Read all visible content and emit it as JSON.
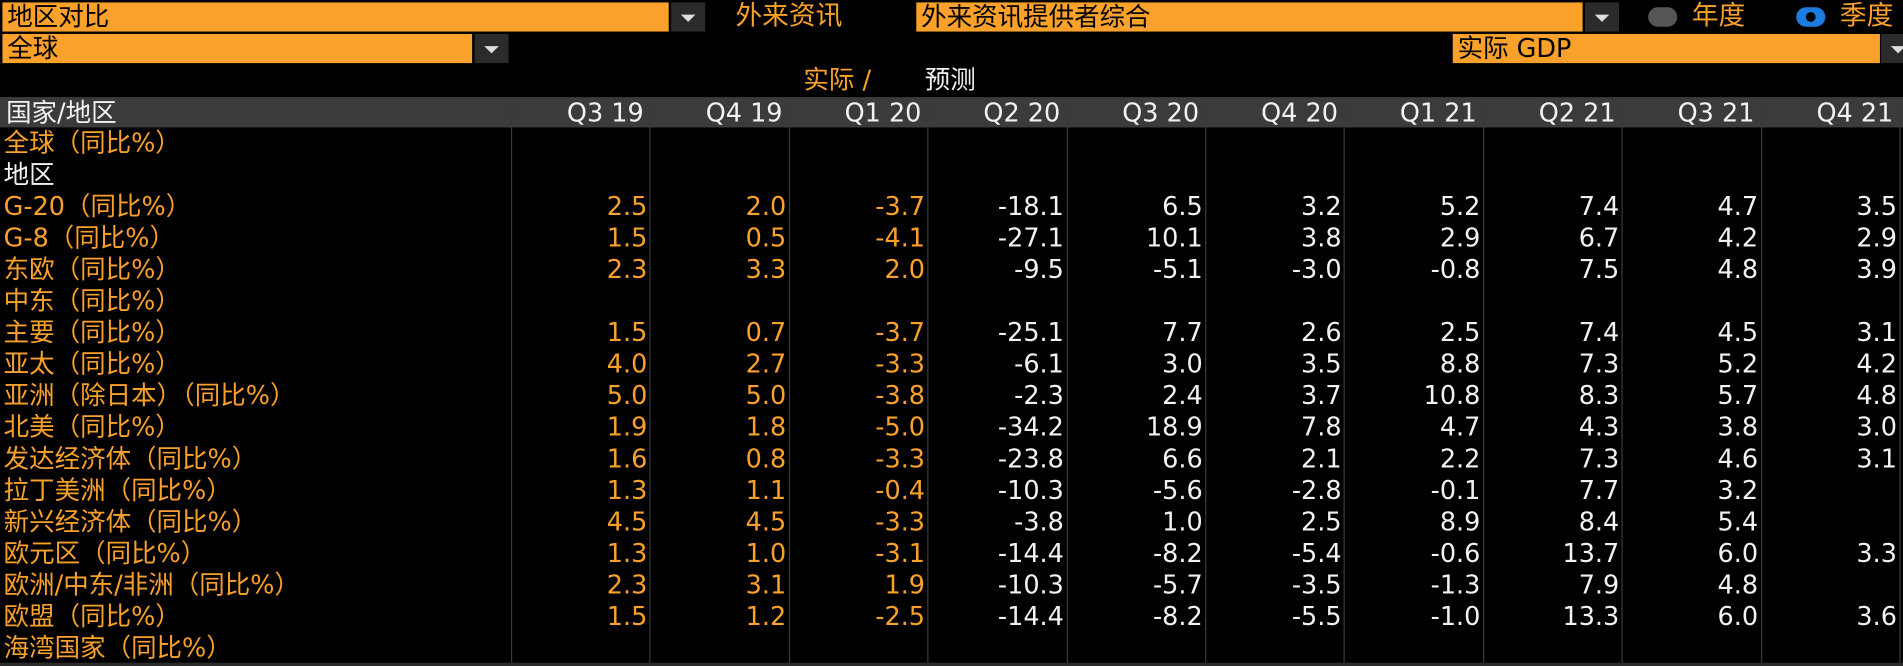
{
  "toolbar": {
    "view_select": "地区对比",
    "source_label": "外来资讯",
    "source_select": "外来资讯提供者综合",
    "period_options": [
      "年度",
      "季度"
    ],
    "region_select": "全球",
    "measure_select": "实际 GDP"
  },
  "table": {
    "legend_actual": "实际 /",
    "legend_forecast": "预测",
    "columns": [
      "国家/地区",
      "Q3 19",
      "Q4 19",
      "Q1 20",
      "Q2 20",
      "Q3 20",
      "Q4 20",
      "Q1 21",
      "Q2 21",
      "Q3 21",
      "Q4 21"
    ],
    "rows": [
      {
        "label": "全球（同比%）",
        "values": []
      },
      {
        "label": "地区",
        "values": []
      },
      {
        "label": "G-20（同比%）",
        "values": [
          "2.5",
          "2.0",
          "-3.7",
          "-18.1",
          "6.5",
          "3.2",
          "5.2",
          "7.4",
          "4.7",
          "3.5"
        ]
      },
      {
        "label": "G-8（同比%）",
        "values": [
          "1.5",
          "0.5",
          "-4.1",
          "-27.1",
          "10.1",
          "3.8",
          "2.9",
          "6.7",
          "4.2",
          "2.9"
        ]
      },
      {
        "label": "东欧（同比%）",
        "values": [
          "2.3",
          "3.3",
          "2.0",
          "-9.5",
          "-5.1",
          "-3.0",
          "-0.8",
          "7.5",
          "4.8",
          "3.9"
        ]
      },
      {
        "label": "中东（同比%）",
        "values": []
      },
      {
        "label": "主要（同比%）",
        "values": [
          "1.5",
          "0.7",
          "-3.7",
          "-25.1",
          "7.7",
          "2.6",
          "2.5",
          "7.4",
          "4.5",
          "3.1"
        ]
      },
      {
        "label": "亚太（同比%）",
        "values": [
          "4.0",
          "2.7",
          "-3.3",
          "-6.1",
          "3.0",
          "3.5",
          "8.8",
          "7.3",
          "5.2",
          "4.2"
        ]
      },
      {
        "label": "亚洲（除日本）（同比%）",
        "values": [
          "5.0",
          "5.0",
          "-3.8",
          "-2.3",
          "2.4",
          "3.7",
          "10.8",
          "8.3",
          "5.7",
          "4.8"
        ]
      },
      {
        "label": "北美（同比%）",
        "values": [
          "1.9",
          "1.8",
          "-5.0",
          "-34.2",
          "18.9",
          "7.8",
          "4.7",
          "4.3",
          "3.8",
          "3.0"
        ]
      },
      {
        "label": "发达经济体（同比%）",
        "values": [
          "1.6",
          "0.8",
          "-3.3",
          "-23.8",
          "6.6",
          "2.1",
          "2.2",
          "7.3",
          "4.6",
          "3.1"
        ]
      },
      {
        "label": "拉丁美洲（同比%）",
        "values": [
          "1.3",
          "1.1",
          "-0.4",
          "-10.3",
          "-5.6",
          "-2.8",
          "-0.1",
          "7.7",
          "3.2",
          null
        ]
      },
      {
        "label": "新兴经济体（同比%）",
        "values": [
          "4.5",
          "4.5",
          "-3.3",
          "-3.8",
          "1.0",
          "2.5",
          "8.9",
          "8.4",
          "5.4",
          null
        ]
      },
      {
        "label": "欧元区（同比%）",
        "values": [
          "1.3",
          "1.0",
          "-3.1",
          "-14.4",
          "-8.2",
          "-5.4",
          "-0.6",
          "13.7",
          "6.0",
          "3.3"
        ]
      },
      {
        "label": "欧洲/中东/非洲（同比%）",
        "values": [
          "2.3",
          "3.1",
          "1.9",
          "-10.3",
          "-5.7",
          "-3.5",
          "-1.3",
          "7.9",
          "4.8",
          null
        ]
      },
      {
        "label": "欧盟（同比%）",
        "values": [
          "1.5",
          "1.2",
          "-2.5",
          "-14.4",
          "-8.2",
          "-5.5",
          "-1.0",
          "13.3",
          "6.0",
          "3.6"
        ]
      },
      {
        "label": "海湾国家（同比%）",
        "values": []
      }
    ]
  }
}
